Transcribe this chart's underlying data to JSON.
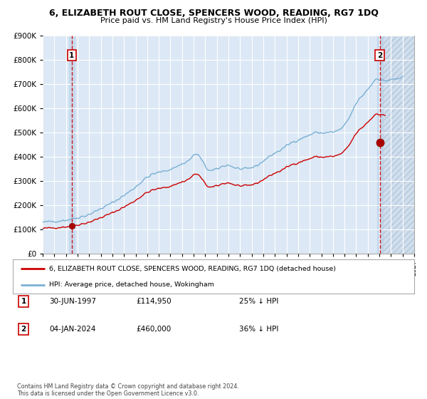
{
  "title": "6, ELIZABETH ROUT CLOSE, SPENCERS WOOD, READING, RG7 1DQ",
  "subtitle": "Price paid vs. HM Land Registry's House Price Index (HPI)",
  "ylabel_ticks": [
    "£0",
    "£100K",
    "£200K",
    "£300K",
    "£400K",
    "£500K",
    "£600K",
    "£700K",
    "£800K",
    "£900K"
  ],
  "ylim": [
    0,
    900000
  ],
  "xlim_start": 1995,
  "xlim_end": 2027,
  "sale1_year": 1997.5,
  "sale1_date": "30-JUN-1997",
  "sale1_price": 114950,
  "sale1_label": "1",
  "sale1_hpi_pct": "25% ↓ HPI",
  "sale2_year": 2024.04,
  "sale2_date": "04-JAN-2024",
  "sale2_price": 460000,
  "sale2_label": "2",
  "sale2_hpi_pct": "36% ↓ HPI",
  "legend_line1": "6, ELIZABETH ROUT CLOSE, SPENCERS WOOD, READING, RG7 1DQ (detached house)",
  "legend_line2": "HPI: Average price, detached house, Wokingham",
  "footer": "Contains HM Land Registry data © Crown copyright and database right 2024.\nThis data is licensed under the Open Government Licence v3.0.",
  "sale_color": "#cc0000",
  "hpi_color": "#7ab0d4",
  "plot_bg_color": "#dce8f5",
  "dashed_line_color": "#cc0000",
  "hatch_color": "#c0d0e0",
  "grid_color": "#ffffff",
  "label_box_color": "#cc0000"
}
